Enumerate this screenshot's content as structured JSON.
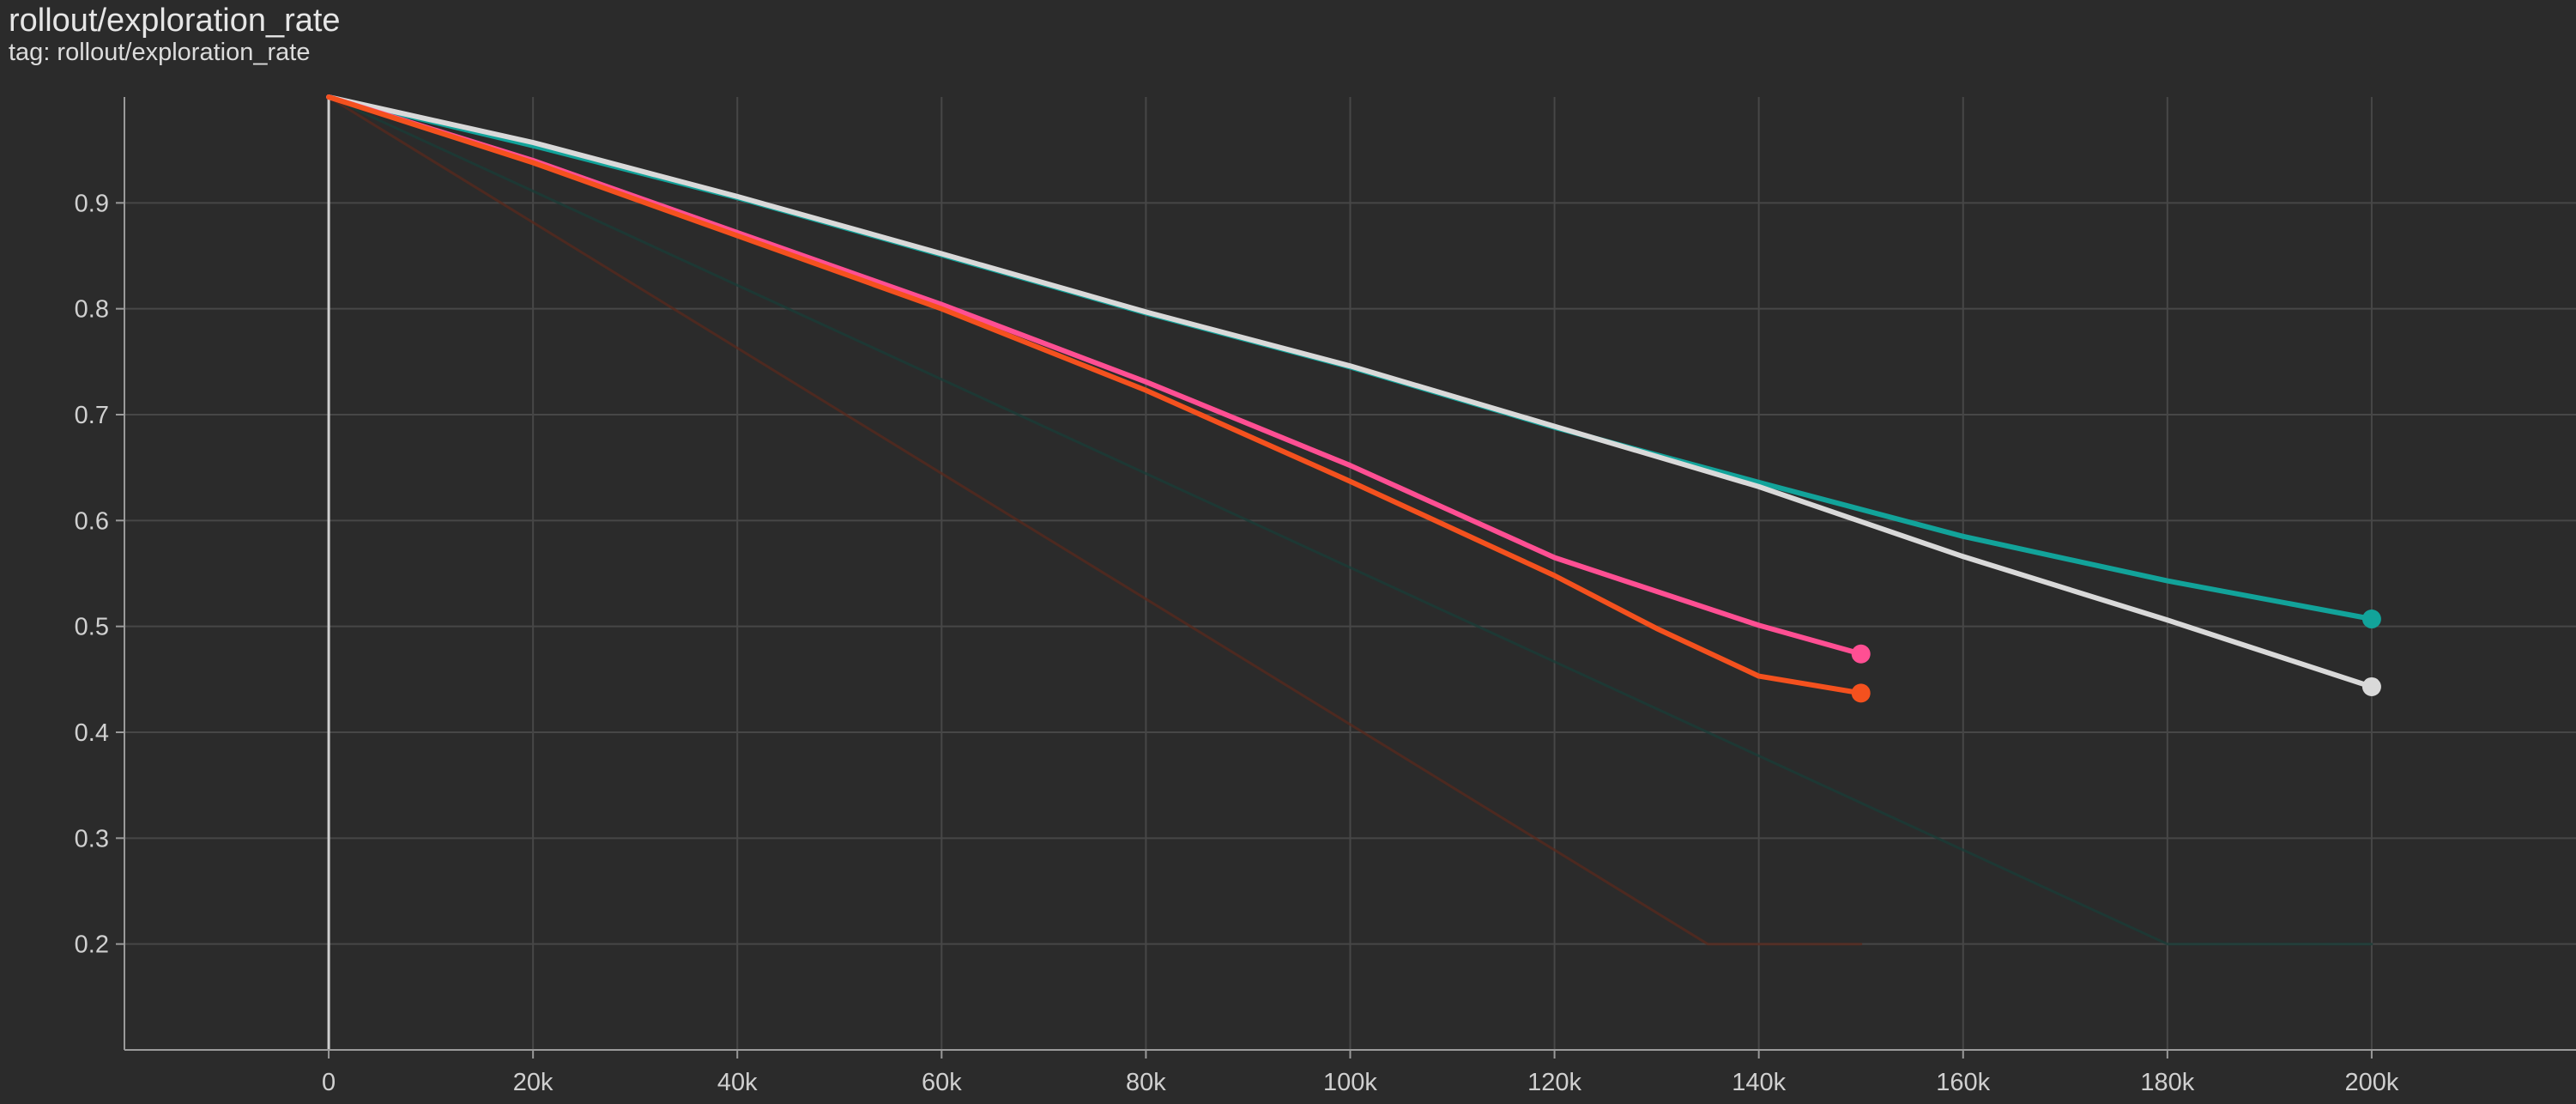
{
  "card": {
    "title": "rollout/exploration_rate",
    "subtitle": "tag: rollout/exploration_rate"
  },
  "chart_data": {
    "type": "line",
    "title": "rollout/exploration_rate",
    "subtitle": "tag: rollout/exploration_rate",
    "xlabel": "",
    "ylabel": "",
    "xlim": [
      -20000,
      220000
    ],
    "ylim": [
      0.1,
      1.0
    ],
    "x_ticks": [
      0,
      20000,
      40000,
      60000,
      80000,
      100000,
      120000,
      140000,
      160000,
      180000,
      200000
    ],
    "x_tick_labels": [
      "0",
      "20k",
      "40k",
      "60k",
      "80k",
      "100k",
      "120k",
      "140k",
      "160k",
      "180k",
      "200k"
    ],
    "y_ticks": [
      0.2,
      0.3,
      0.4,
      0.5,
      0.6,
      0.7,
      0.8,
      0.9
    ],
    "y_tick_labels": [
      "0.2",
      "0.3",
      "0.4",
      "0.5",
      "0.6",
      "0.7",
      "0.8",
      "0.9"
    ],
    "grid": true,
    "series": [
      {
        "color": "#1a3d38",
        "raw": true,
        "x": [
          0,
          180000,
          200000
        ],
        "y": [
          1.0,
          0.2,
          0.2
        ]
      },
      {
        "color": "#5a2a1e",
        "raw": true,
        "x": [
          0,
          135000,
          150000
        ],
        "y": [
          1.0,
          0.2,
          0.2
        ]
      },
      {
        "color": "#12a39a",
        "x": [
          0,
          20000,
          40000,
          60000,
          80000,
          100000,
          120000,
          140000,
          160000,
          180000,
          200000
        ],
        "y": [
          1.0,
          0.954,
          0.905,
          0.851,
          0.796,
          0.745,
          0.688,
          0.636,
          0.585,
          0.543,
          0.507
        ],
        "end_marker": true
      },
      {
        "color": "#d9d9d9",
        "x": [
          0,
          20000,
          40000,
          60000,
          80000,
          100000,
          120000,
          140000,
          160000,
          180000,
          200000
        ],
        "y": [
          1.0,
          0.957,
          0.906,
          0.852,
          0.797,
          0.746,
          0.689,
          0.632,
          0.566,
          0.506,
          0.443
        ],
        "end_marker": true
      },
      {
        "color": "#ff4f93",
        "x": [
          0,
          20000,
          40000,
          60000,
          80000,
          100000,
          120000,
          140000,
          150000
        ],
        "y": [
          1.0,
          0.94,
          0.872,
          0.804,
          0.731,
          0.652,
          0.565,
          0.501,
          0.474
        ],
        "end_marker": true
      },
      {
        "color": "#f4511e",
        "x": [
          0,
          20000,
          40000,
          60000,
          80000,
          100000,
          120000,
          130000,
          140000,
          150000
        ],
        "y": [
          1.0,
          0.938,
          0.869,
          0.8,
          0.723,
          0.637,
          0.548,
          0.498,
          0.453,
          0.437
        ],
        "end_marker": true
      }
    ]
  }
}
